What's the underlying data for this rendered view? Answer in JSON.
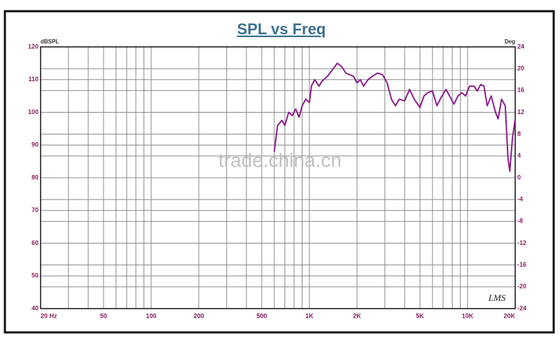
{
  "chart_data": {
    "type": "line",
    "title": "SPL vs Freq",
    "ylabel": "dBSPL",
    "y2label": "Deg",
    "annotations": [
      "trade.china.cn",
      "LMS"
    ],
    "xscale": "log",
    "grid": true,
    "xlim": [
      20,
      20000
    ],
    "xticks": [
      {
        "value": 20,
        "label": "20 Hz"
      },
      50,
      100,
      200,
      500,
      {
        "value": 1000,
        "label": "1K"
      },
      {
        "value": 2000,
        "label": "2K"
      },
      {
        "value": 5000,
        "label": "5K"
      },
      {
        "value": 10000,
        "label": "10K"
      },
      {
        "value": 20000,
        "label": "20K"
      }
    ],
    "xminorticks": [
      30,
      40,
      60,
      70,
      80,
      90,
      300,
      400,
      600,
      700,
      800,
      900,
      3000,
      4000,
      6000,
      7000,
      8000,
      9000
    ],
    "ylim": [
      40,
      120
    ],
    "yticks": [
      40,
      50,
      60,
      70,
      80,
      90,
      100,
      110,
      120
    ],
    "y2lim": [
      -24,
      24
    ],
    "y2ticks": [
      -24,
      -20,
      -16,
      -12,
      -8,
      -4,
      0,
      4,
      8,
      12,
      16,
      20,
      24
    ],
    "x": [
      600,
      630,
      670,
      700,
      740,
      780,
      820,
      860,
      900,
      950,
      1000,
      1030,
      1080,
      1150,
      1200,
      1300,
      1400,
      1500,
      1600,
      1700,
      1900,
      2000,
      2100,
      2200,
      2350,
      2500,
      2700,
      2900,
      3100,
      3300,
      3500,
      3700,
      4000,
      4300,
      4600,
      5000,
      5300,
      5600,
      6000,
      6400,
      6800,
      7300,
      7700,
      8200,
      8700,
      9200,
      9700,
      10300,
      11000,
      11500,
      12100,
      12700,
      13300,
      14100,
      15000,
      15600,
      16400,
      17300,
      18000,
      18500,
      19200,
      20000
    ],
    "series": [
      {
        "name": "SPL",
        "color": "#8a1f8c",
        "values": [
          88,
          96,
          97.5,
          96,
          100,
          99,
          101,
          98.5,
          102,
          104,
          103,
          108,
          110,
          108,
          109.5,
          111,
          113,
          115,
          114,
          112,
          111,
          109,
          110,
          108,
          110,
          111,
          112,
          111.5,
          109,
          104,
          102,
          104,
          103.5,
          107,
          104,
          101.5,
          105,
          106,
          106.5,
          102,
          104.5,
          107,
          105,
          102.5,
          105,
          106,
          105,
          108,
          108,
          106.5,
          108.5,
          108,
          102,
          105,
          100,
          98,
          104,
          102,
          86,
          82,
          92,
          98
        ]
      }
    ]
  }
}
